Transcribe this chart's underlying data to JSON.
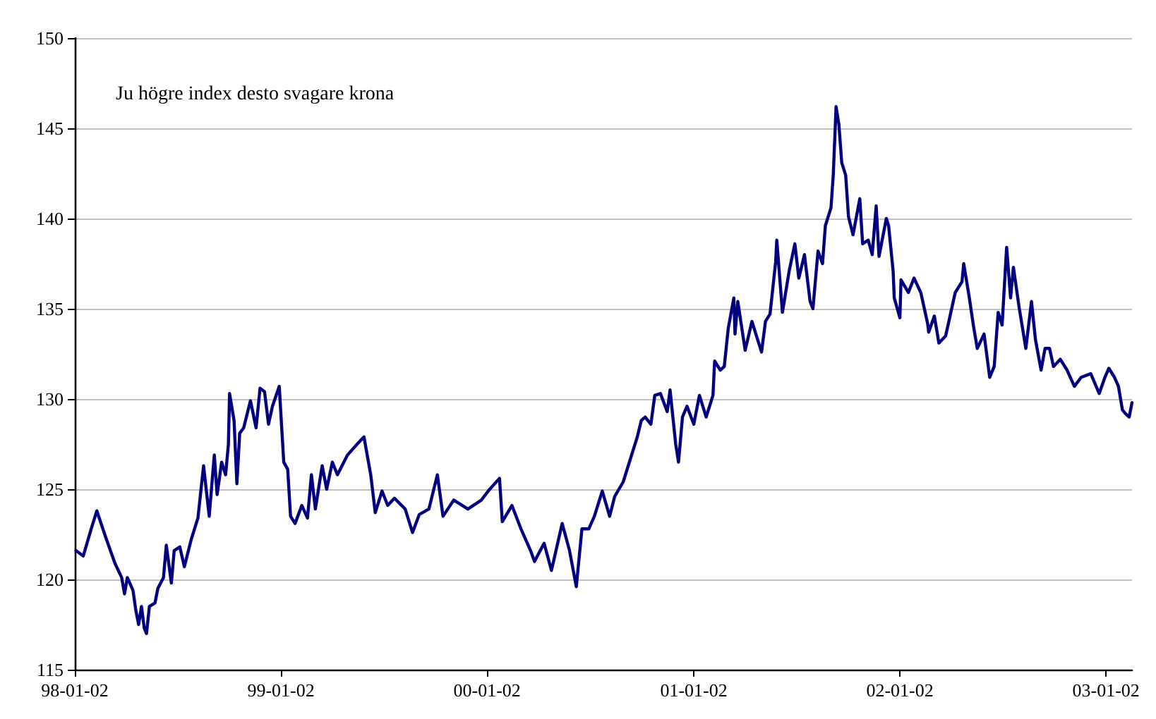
{
  "chart_data": {
    "type": "line",
    "annotations": [
      "Ju högre index desto svagare krona"
    ],
    "x": [
      "1998-01-04",
      "1998-01-17",
      "1998-01-31",
      "1998-02-10",
      "1998-02-25",
      "1998-03-14",
      "1998-03-26",
      "1998-03-31",
      "1998-04-05",
      "1998-04-15",
      "1998-04-20",
      "1998-04-25",
      "1998-04-30",
      "1998-05-05",
      "1998-05-09",
      "1998-05-14",
      "1998-05-24",
      "1998-05-29",
      "1998-06-08",
      "1998-06-13",
      "1998-06-22",
      "1998-06-27",
      "1998-07-07",
      "1998-07-15",
      "1998-07-27",
      "1998-08-08",
      "1998-08-18",
      "1998-08-28",
      "1998-09-06",
      "1998-09-11",
      "1998-09-19",
      "1998-09-26",
      "1998-10-01",
      "1998-10-03",
      "1998-10-11",
      "1998-10-16",
      "1998-10-21",
      "1998-10-28",
      "1998-11-09",
      "1998-11-19",
      "1998-11-26",
      "1998-12-04",
      "1998-12-11",
      "1998-12-18",
      "1998-12-30",
      "1999-01-07",
      "1999-01-14",
      "1999-01-19",
      "1999-01-27",
      "1999-02-08",
      "1999-02-18",
      "1999-02-25",
      "1999-03-04",
      "1999-03-16",
      "1999-03-24",
      "1999-04-03",
      "1999-04-12",
      "1999-04-30",
      "1999-05-17",
      "1999-05-29",
      "1999-06-10",
      "1999-06-18",
      "1999-06-30",
      "1999-07-10",
      "1999-07-22",
      "1999-08-10",
      "1999-08-23",
      "1999-09-04",
      "1999-09-21",
      "1999-10-06",
      "1999-10-16",
      "1999-11-04",
      "1999-11-29",
      "1999-12-23",
      "2000-01-04",
      "2000-01-24",
      "2000-01-29",
      "2000-02-15",
      "2000-03-02",
      "2000-03-19",
      "2000-03-26",
      "2000-04-12",
      "2000-04-25",
      "2000-05-14",
      "2000-05-27",
      "2000-06-08",
      "2000-06-18",
      "2000-06-30",
      "2000-07-10",
      "2000-07-24",
      "2000-08-06",
      "2000-08-15",
      "2000-08-30",
      "2000-09-14",
      "2000-09-24",
      "2000-10-01",
      "2000-10-08",
      "2000-10-18",
      "2000-10-25",
      "2000-11-04",
      "2000-11-16",
      "2000-11-21",
      "2000-12-01",
      "2000-12-06",
      "2000-12-13",
      "2000-12-21",
      "2001-01-02",
      "2001-01-12",
      "2001-01-24",
      "2001-02-05",
      "2001-02-08",
      "2001-02-18",
      "2001-02-25",
      "2001-03-04",
      "2001-03-14",
      "2001-03-16",
      "2001-03-21",
      "2001-04-03",
      "2001-04-15",
      "2001-04-22",
      "2001-05-02",
      "2001-05-09",
      "2001-05-17",
      "2001-05-27",
      "2001-05-29",
      "2001-06-08",
      "2001-06-20",
      "2001-06-30",
      "2001-07-07",
      "2001-07-17",
      "2001-07-27",
      "2001-08-01",
      "2001-08-10",
      "2001-08-18",
      "2001-08-23",
      "2001-09-02",
      "2001-09-06",
      "2001-09-11",
      "2001-09-16",
      "2001-09-21",
      "2001-09-28",
      "2001-10-03",
      "2001-10-11",
      "2001-10-23",
      "2001-10-28",
      "2001-11-07",
      "2001-11-14",
      "2001-11-21",
      "2001-11-26",
      "2001-12-09",
      "2001-12-13",
      "2001-12-21",
      "2001-12-23",
      "2002-01-02",
      "2002-01-04",
      "2002-01-17",
      "2002-01-27",
      "2002-02-08",
      "2002-02-20",
      "2002-02-22",
      "2002-03-04",
      "2002-03-12",
      "2002-03-24",
      "2002-04-10",
      "2002-04-22",
      "2002-04-25",
      "2002-05-05",
      "2002-05-12",
      "2002-05-19",
      "2002-05-31",
      "2002-06-10",
      "2002-06-18",
      "2002-06-25",
      "2002-07-02",
      "2002-07-10",
      "2002-07-17",
      "2002-07-22",
      "2002-08-01",
      "2002-08-13",
      "2002-08-23",
      "2002-08-30",
      "2002-09-09",
      "2002-09-16",
      "2002-09-24",
      "2002-10-01",
      "2002-10-13",
      "2002-10-25",
      "2002-11-07",
      "2002-11-19",
      "2002-12-06",
      "2002-12-21",
      "2002-12-31",
      "2003-01-07",
      "2003-01-17",
      "2003-01-24",
      "2003-01-31",
      "2003-02-05",
      "2003-02-12",
      "2003-02-17"
    ],
    "series": [
      {
        "color": "#000080",
        "values": [
          121.6,
          121.3,
          122.8,
          123.8,
          122.4,
          120.9,
          120.1,
          119.2,
          120.1,
          119.4,
          118.3,
          117.5,
          118.5,
          117.3,
          117.0,
          118.5,
          118.7,
          119.5,
          120.1,
          121.9,
          119.8,
          121.6,
          121.8,
          120.7,
          122.2,
          123.4,
          126.3,
          123.5,
          126.9,
          124.7,
          126.5,
          125.8,
          127.5,
          130.3,
          128.8,
          125.3,
          128.1,
          128.4,
          129.9,
          128.4,
          130.6,
          130.4,
          128.6,
          129.6,
          130.7,
          126.5,
          126.1,
          123.5,
          123.1,
          124.1,
          123.4,
          125.8,
          123.9,
          126.3,
          125.0,
          126.5,
          125.8,
          126.9,
          127.5,
          127.9,
          125.8,
          123.7,
          124.9,
          124.1,
          124.5,
          123.9,
          122.6,
          123.6,
          123.9,
          125.8,
          123.5,
          124.4,
          123.9,
          124.4,
          124.9,
          125.6,
          123.2,
          124.1,
          122.8,
          121.6,
          121.0,
          122.0,
          120.5,
          123.1,
          121.6,
          119.6,
          122.8,
          122.8,
          123.5,
          124.9,
          123.5,
          124.6,
          125.4,
          126.9,
          127.9,
          128.8,
          129.0,
          128.6,
          130.2,
          130.3,
          129.3,
          130.5,
          127.5,
          126.5,
          129.0,
          129.6,
          128.6,
          130.2,
          129.0,
          130.2,
          132.1,
          131.6,
          131.8,
          133.9,
          135.6,
          133.6,
          135.4,
          132.7,
          134.3,
          133.6,
          132.6,
          134.3,
          134.7,
          137.6,
          138.8,
          134.8,
          137.1,
          138.6,
          136.7,
          138.0,
          135.4,
          135.0,
          138.2,
          137.5,
          139.6,
          140.6,
          142.4,
          146.2,
          145.2,
          143.1,
          142.4,
          140.1,
          139.1,
          141.1,
          138.6,
          138.8,
          138.0,
          140.7,
          137.9,
          140.0,
          139.6,
          137.1,
          135.6,
          134.5,
          136.6,
          135.9,
          136.7,
          135.9,
          134.2,
          133.7,
          134.6,
          133.1,
          133.5,
          135.9,
          136.5,
          137.5,
          135.6,
          134.1,
          132.8,
          133.6,
          131.2,
          131.8,
          134.8,
          134.1,
          138.4,
          135.6,
          137.3,
          135.1,
          132.8,
          135.4,
          133.3,
          131.6,
          132.8,
          132.8,
          131.8,
          132.2,
          131.6,
          130.7,
          131.2,
          131.4,
          130.3,
          131.2,
          131.7,
          131.2,
          130.7,
          129.4,
          129.2,
          129.0,
          129.8
        ]
      }
    ],
    "xlim": [
      "1998-01-02",
      "2003-02-17"
    ],
    "xticks": [
      {
        "value": "1998-01-02",
        "label": "98-01-02"
      },
      {
        "value": "1999-01-02",
        "label": "99-01-02"
      },
      {
        "value": "2000-01-02",
        "label": "00-01-02"
      },
      {
        "value": "2001-01-02",
        "label": "01-01-02"
      },
      {
        "value": "2002-01-02",
        "label": "02-01-02"
      },
      {
        "value": "2003-01-02",
        "label": "03-01-02"
      }
    ],
    "ylim": [
      115,
      150
    ],
    "yticks": [
      115,
      120,
      125,
      130,
      135,
      140,
      145,
      150
    ],
    "grid": "y",
    "marker": "none",
    "line_style": "solid"
  }
}
